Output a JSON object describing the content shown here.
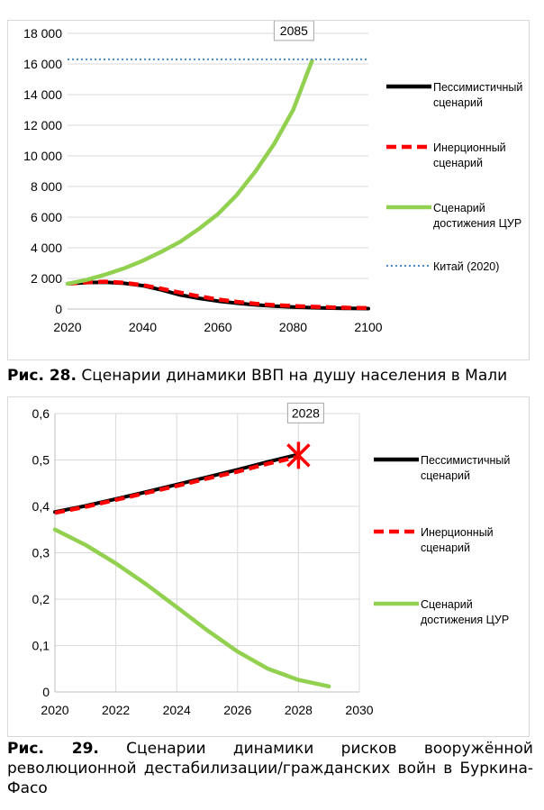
{
  "chart_data": [
    {
      "type": "line",
      "title": "",
      "xlabel": "",
      "ylabel": "",
      "xlim": [
        2020,
        2100
      ],
      "ylim": [
        0,
        18000
      ],
      "x_ticks": [
        "2020",
        "2040",
        "2060",
        "2080",
        "2100"
      ],
      "y_ticks": [
        "0",
        "2 000",
        "4 000",
        "6 000",
        "8 000",
        "10 000",
        "12 000",
        "14 000",
        "16 000",
        "18 000"
      ],
      "grid": "horizontal",
      "legend": "right",
      "annotation": "2085",
      "series": [
        {
          "name": "Пессимистичный сценарий",
          "color": "#000000",
          "style": "solid",
          "points": [
            [
              2020,
              1650
            ],
            [
              2025,
              1730
            ],
            [
              2030,
              1750
            ],
            [
              2035,
              1680
            ],
            [
              2040,
              1530
            ],
            [
              2045,
              1250
            ],
            [
              2050,
              920
            ],
            [
              2055,
              700
            ],
            [
              2060,
              520
            ],
            [
              2065,
              380
            ],
            [
              2070,
              270
            ],
            [
              2075,
              190
            ],
            [
              2080,
              130
            ],
            [
              2085,
              90
            ],
            [
              2090,
              60
            ],
            [
              2095,
              40
            ],
            [
              2100,
              30
            ]
          ]
        },
        {
          "name": "Инерционный сценарий",
          "color": "#ff0000",
          "style": "dashed",
          "points": [
            [
              2020,
              1650
            ],
            [
              2025,
              1740
            ],
            [
              2030,
              1790
            ],
            [
              2035,
              1720
            ],
            [
              2040,
              1560
            ],
            [
              2045,
              1330
            ],
            [
              2050,
              1070
            ],
            [
              2055,
              830
            ],
            [
              2060,
              630
            ],
            [
              2065,
              470
            ],
            [
              2070,
              350
            ],
            [
              2075,
              260
            ],
            [
              2080,
              200
            ],
            [
              2085,
              150
            ],
            [
              2090,
              110
            ],
            [
              2095,
              85
            ],
            [
              2100,
              65
            ]
          ]
        },
        {
          "name": "Сценарий достижения ЦУР",
          "color": "#92d050",
          "style": "solid",
          "points": [
            [
              2020,
              1650
            ],
            [
              2025,
              1900
            ],
            [
              2030,
              2250
            ],
            [
              2035,
              2650
            ],
            [
              2040,
              3150
            ],
            [
              2045,
              3750
            ],
            [
              2050,
              4400
            ],
            [
              2055,
              5250
            ],
            [
              2060,
              6200
            ],
            [
              2065,
              7450
            ],
            [
              2070,
              9000
            ],
            [
              2075,
              10800
            ],
            [
              2080,
              13000
            ],
            [
              2085,
              16200
            ]
          ]
        },
        {
          "name": "Китай (2020)",
          "color": "#4a8ac9",
          "style": "dotted",
          "points": [
            [
              2020,
              16300
            ],
            [
              2100,
              16300
            ]
          ]
        }
      ]
    },
    {
      "type": "line",
      "title": "",
      "xlabel": "",
      "ylabel": "",
      "xlim": [
        2020,
        2030
      ],
      "ylim": [
        0,
        0.6
      ],
      "x_ticks": [
        "2020",
        "2022",
        "2024",
        "2026",
        "2028",
        "2030"
      ],
      "y_ticks": [
        "0",
        "0,1",
        "0,2",
        "0,3",
        "0,4",
        "0,5",
        "0,6"
      ],
      "grid": "both",
      "legend": "right",
      "annotation": "2028",
      "series": [
        {
          "name": "Пессимистичный сценарий",
          "color": "#000000",
          "style": "solid",
          "points": [
            [
              2020,
              0.388
            ],
            [
              2021,
              0.401
            ],
            [
              2022,
              0.416
            ],
            [
              2023,
              0.431
            ],
            [
              2024,
              0.447
            ],
            [
              2025,
              0.463
            ],
            [
              2026,
              0.479
            ],
            [
              2027,
              0.496
            ],
            [
              2028,
              0.512
            ]
          ]
        },
        {
          "name": "Инерционный сценарий",
          "color": "#ff0000",
          "style": "dashed",
          "points": [
            [
              2020,
              0.386
            ],
            [
              2021,
              0.399
            ],
            [
              2022,
              0.414
            ],
            [
              2023,
              0.429
            ],
            [
              2024,
              0.444
            ],
            [
              2025,
              0.46
            ],
            [
              2026,
              0.475
            ],
            [
              2027,
              0.492
            ],
            [
              2028,
              0.507
            ]
          ]
        },
        {
          "name": "Сценарий достижения ЦУР",
          "color": "#92d050",
          "style": "solid",
          "points": [
            [
              2020,
              0.35
            ],
            [
              2021,
              0.317
            ],
            [
              2022,
              0.277
            ],
            [
              2023,
              0.232
            ],
            [
              2024,
              0.183
            ],
            [
              2025,
              0.133
            ],
            [
              2026,
              0.087
            ],
            [
              2027,
              0.05
            ],
            [
              2028,
              0.026
            ],
            [
              2029,
              0.012
            ]
          ]
        }
      ]
    }
  ],
  "captions": {
    "fig28_label": "Рис. 28.",
    "fig28_text": " Сценарии динамики ВВП на душу населения в Мали",
    "fig29_label": "Рис. 29.",
    "fig29_text": " Сценарии динамики рисков вооружённой революционной дестабилизации/гражданских войн в Буркина-Фасо"
  }
}
